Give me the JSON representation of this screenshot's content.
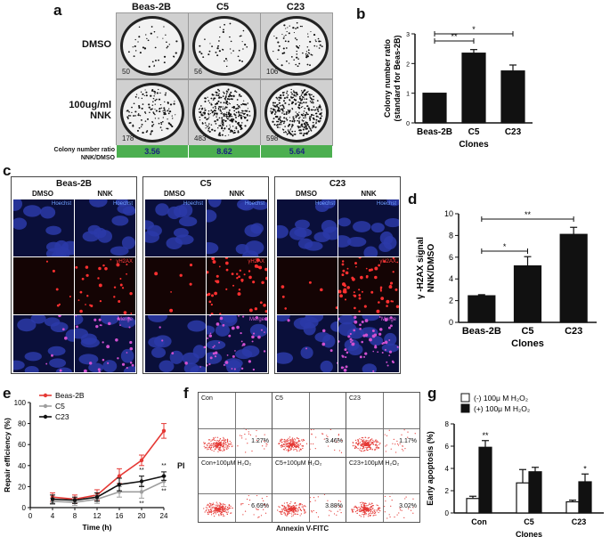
{
  "panels": {
    "a": {
      "letter": "a",
      "cols": [
        "Beas-2B",
        "C5",
        "C23"
      ],
      "rows": [
        "DMSO",
        "100ug/ml NNK"
      ],
      "counts_dmso": [
        "50",
        "56",
        "106"
      ],
      "counts_nnk": [
        "178",
        "483",
        "598"
      ],
      "ratio_label": "Colony number ratio NNK/DMSO",
      "ratios": [
        "3.56",
        "8.62",
        "5.64"
      ]
    },
    "b": {
      "letter": "b"
    },
    "c": {
      "letter": "c",
      "groups": [
        "Beas-2B",
        "C5",
        "C23"
      ],
      "subcols": [
        "DMSO",
        "NNK"
      ],
      "stains": [
        "Hoechst",
        "γH2AX",
        "Merge"
      ]
    },
    "d": {
      "letter": "d"
    },
    "e": {
      "letter": "e"
    },
    "f": {
      "letter": "f",
      "ylabel": "PI",
      "xlabel": "Annexin V-FITC",
      "top": [
        {
          "name": "Con",
          "pct": "1.27%"
        },
        {
          "name": "C5",
          "pct": "3.46%"
        },
        {
          "name": "C23",
          "pct": "1.17%"
        }
      ],
      "bottom": [
        {
          "name": "Con+100μM H₂O₂",
          "pct": "6.69%"
        },
        {
          "name": "C5+100μM H₂O₂",
          "pct": "3.88%"
        },
        {
          "name": "C23+100μM H₂O₂",
          "pct": "3.02%"
        }
      ]
    },
    "g": {
      "letter": "g"
    }
  },
  "chart_data": [
    {
      "id": "b",
      "type": "bar",
      "categories": [
        "Beas-2B",
        "C5",
        "C23"
      ],
      "values": [
        1.0,
        2.35,
        1.75
      ],
      "errors": [
        0,
        0.12,
        0.2
      ],
      "xlabel": "Clones",
      "ylabel": "Colony number ratio (standard for Beas-2B)",
      "ylim": [
        0,
        3
      ],
      "yticks": [
        "0",
        "1",
        "2",
        "3"
      ],
      "sig": [
        "**",
        "*"
      ]
    },
    {
      "id": "d",
      "type": "bar",
      "categories": [
        "Beas-2B",
        "C5",
        "C23"
      ],
      "values": [
        2.45,
        5.2,
        8.1
      ],
      "errors": [
        0.1,
        0.85,
        0.65
      ],
      "xlabel": "Clones",
      "ylabel": "γ -H2AX signal NNK/DMSO",
      "ylim": [
        0,
        10
      ],
      "yticks": [
        "0",
        "2",
        "4",
        "6",
        "8",
        "10"
      ],
      "sig": [
        "*",
        "**"
      ]
    },
    {
      "id": "e",
      "type": "line",
      "x": [
        4,
        8,
        12,
        16,
        20,
        24
      ],
      "xticks": [
        "0",
        "4",
        "8",
        "12",
        "16",
        "20",
        "24"
      ],
      "xlabel": "Time (h)",
      "ylabel": "Repair efficiency (%)",
      "ylim": [
        0,
        100
      ],
      "yticks": [
        "0",
        "20",
        "40",
        "60",
        "80",
        "100"
      ],
      "series": [
        {
          "name": "Beas-2B",
          "color": "#e53935",
          "values": [
            10,
            8,
            12,
            30,
            45,
            73
          ],
          "errors": [
            4,
            4,
            5,
            7,
            5,
            7
          ]
        },
        {
          "name": "C5",
          "color": "#9e9e9e",
          "values": [
            6,
            5,
            8,
            15,
            15,
            25
          ],
          "errors": [
            3,
            3,
            4,
            5,
            6,
            5
          ]
        },
        {
          "name": "C23",
          "color": "#111111",
          "values": [
            8,
            7,
            10,
            22,
            25,
            30
          ],
          "errors": [
            4,
            3,
            4,
            6,
            5,
            4
          ]
        }
      ],
      "sig": [
        "**",
        "**",
        "**",
        "**"
      ]
    },
    {
      "id": "g",
      "type": "bar",
      "categories": [
        "Con",
        "C5",
        "C23"
      ],
      "xlabel": "Clones",
      "ylabel": "Early apoptosis (%)",
      "ylim": [
        0,
        8
      ],
      "yticks": [
        "0",
        "2",
        "4",
        "6",
        "8"
      ],
      "series": [
        {
          "name": "(-) 100μ M H₂O₂",
          "color": "#ffffff",
          "values": [
            1.3,
            2.7,
            1.0
          ],
          "errors": [
            0.2,
            1.2,
            0.15
          ]
        },
        {
          "name": "(+) 100μ M H₂O₂",
          "color": "#111111",
          "values": [
            5.9,
            3.7,
            2.8
          ],
          "errors": [
            0.6,
            0.4,
            0.7
          ]
        }
      ],
      "sig": [
        "**",
        "",
        "*"
      ]
    }
  ]
}
